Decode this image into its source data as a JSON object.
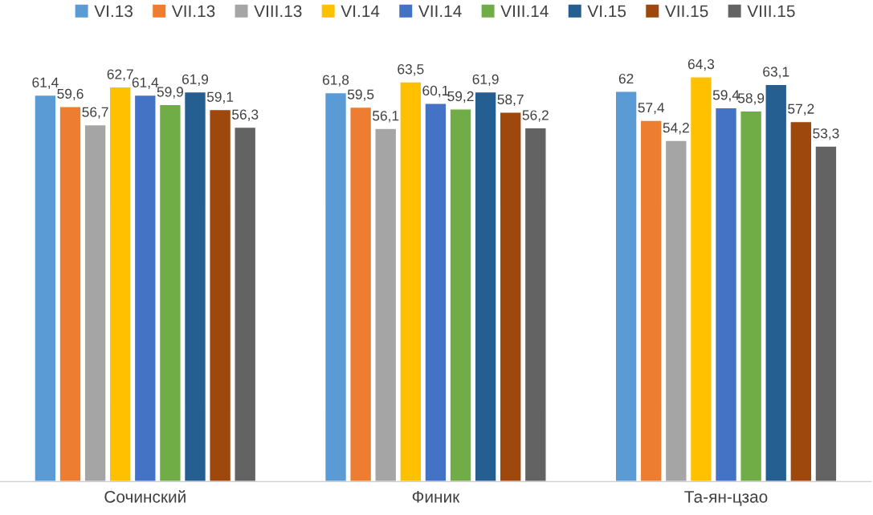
{
  "chart_data": {
    "type": "bar",
    "categories": [
      "Сочинский",
      "Финик",
      "Та-ян-цзао"
    ],
    "series": [
      {
        "name": "VI.13",
        "color": "#5b9bd5",
        "values": [
          61.4,
          61.8,
          62
        ],
        "value_labels": [
          "61,4",
          "61,8",
          "62"
        ]
      },
      {
        "name": "VII.13",
        "color": "#ed7d31",
        "values": [
          59.6,
          59.5,
          57.4
        ],
        "value_labels": [
          "59,6",
          "59,5",
          "57,4"
        ]
      },
      {
        "name": "VIII.13",
        "color": "#a5a5a5",
        "values": [
          56.7,
          56.1,
          54.2
        ],
        "value_labels": [
          "56,7",
          "56,1",
          "54,2"
        ]
      },
      {
        "name": "VI.14",
        "color": "#ffc000",
        "values": [
          62.7,
          63.5,
          64.3
        ],
        "value_labels": [
          "62,7",
          "63,5",
          "64,3"
        ]
      },
      {
        "name": "VII.14",
        "color": "#4472c4",
        "values": [
          61.4,
          60.1,
          59.4
        ],
        "value_labels": [
          "61,4",
          "60,1",
          "59,4"
        ]
      },
      {
        "name": "VIII.14",
        "color": "#70ad47",
        "values": [
          59.9,
          59.2,
          58.9
        ],
        "value_labels": [
          "59,9",
          "59,2",
          "58,9"
        ]
      },
      {
        "name": "VI.15",
        "color": "#255e91",
        "values": [
          61.9,
          61.9,
          63.1
        ],
        "value_labels": [
          "61,9",
          "61,9",
          "63,1"
        ]
      },
      {
        "name": "VII.15",
        "color": "#9e480e",
        "values": [
          59.1,
          58.7,
          57.2
        ],
        "value_labels": [
          "59,1",
          "58,7",
          "57,2"
        ]
      },
      {
        "name": "VIII.15",
        "color": "#636363",
        "values": [
          56.3,
          56.2,
          53.3
        ],
        "value_labels": [
          "56,3",
          "56,2",
          "53,3"
        ]
      }
    ],
    "legend": "top",
    "grid": false,
    "tick_labels": "x"
  }
}
